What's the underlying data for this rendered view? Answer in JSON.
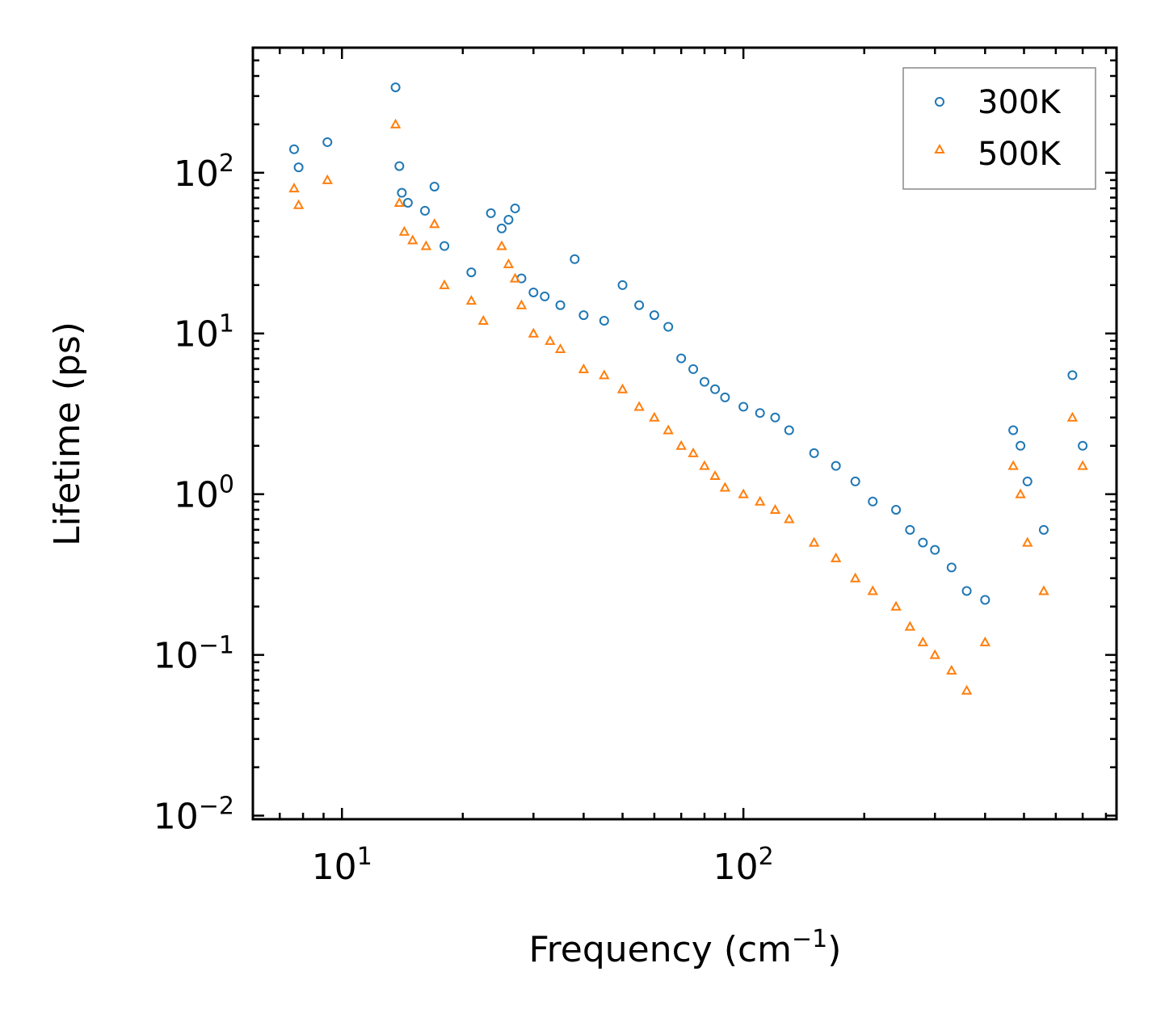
{
  "chart_data": {
    "type": "scatter",
    "title": "",
    "xlabel": "Frequency (cm",
    "xlabel_sup": "−1",
    "xlabel_end": ")",
    "ylabel": "Lifetime (ps)",
    "xscale": "log",
    "yscale": "log",
    "xlim": [
      6,
      850
    ],
    "ylim": [
      0.0095,
      600
    ],
    "x_ticks": [
      {
        "value": 10,
        "base": "10",
        "exp": "1"
      },
      {
        "value": 100,
        "base": "10",
        "exp": "2"
      }
    ],
    "y_ticks": [
      {
        "value": 0.01,
        "base": "10",
        "exp": "−2"
      },
      {
        "value": 0.1,
        "base": "10",
        "exp": "−1"
      },
      {
        "value": 1,
        "base": "10",
        "exp": "0"
      },
      {
        "value": 10,
        "base": "10",
        "exp": "1"
      },
      {
        "value": 100,
        "base": "10",
        "exp": "2"
      }
    ],
    "legend_position": "top-right",
    "series": [
      {
        "name": "300K",
        "marker": "circle",
        "color": "#1f77b4",
        "x": [
          7.6,
          7.8,
          9.2,
          13.6,
          13.9,
          14.1,
          14.6,
          16.1,
          17.0,
          18.0,
          21.0,
          23.5,
          25.0,
          26.0,
          27.0,
          28.0,
          30.0,
          32.0,
          35.0,
          38.0,
          40.0,
          45.0,
          50.0,
          55.0,
          60.0,
          65.0,
          70.0,
          75.0,
          80.0,
          85.0,
          90.0,
          100.0,
          110.0,
          120.0,
          130.0,
          150.0,
          170.0,
          190.0,
          210.0,
          240.0,
          260.0,
          280.0,
          300.0,
          330.0,
          360.0,
          400.0,
          470.0,
          490.0,
          510.0,
          560.0,
          660.0,
          700.0
        ],
        "y": [
          140,
          108,
          155,
          340,
          110,
          75,
          65,
          58,
          82,
          35,
          24,
          56,
          45,
          51,
          60,
          22,
          18,
          17,
          15,
          29,
          13,
          12,
          20,
          15,
          13,
          11,
          7,
          6,
          5,
          4.5,
          4,
          3.5,
          3.2,
          3.0,
          2.5,
          1.8,
          1.5,
          1.2,
          0.9,
          0.8,
          0.6,
          0.5,
          0.45,
          0.35,
          0.25,
          0.22,
          2.5,
          2.0,
          1.2,
          0.6,
          5.5,
          2.0
        ]
      },
      {
        "name": "500K",
        "marker": "triangle",
        "color": "#ff7f0e",
        "x": [
          7.6,
          7.8,
          9.2,
          13.6,
          13.9,
          14.3,
          15.0,
          16.2,
          17.0,
          18.0,
          21.0,
          22.5,
          25.0,
          26.0,
          27.0,
          28.0,
          30.0,
          33.0,
          35.0,
          40.0,
          45.0,
          50.0,
          55.0,
          60.0,
          65.0,
          70.0,
          75.0,
          80.0,
          85.0,
          90.0,
          100.0,
          110.0,
          120.0,
          130.0,
          150.0,
          170.0,
          190.0,
          210.0,
          240.0,
          260.0,
          280.0,
          300.0,
          330.0,
          360.0,
          400.0,
          470.0,
          490.0,
          510.0,
          560.0,
          660.0,
          700.0
        ],
        "y": [
          80,
          63,
          90,
          200,
          65,
          43,
          38,
          35,
          48,
          20,
          16,
          12,
          35,
          27,
          22,
          15,
          10,
          9,
          8,
          6,
          5.5,
          4.5,
          3.5,
          3.0,
          2.5,
          2.0,
          1.8,
          1.5,
          1.3,
          1.1,
          1.0,
          0.9,
          0.8,
          0.7,
          0.5,
          0.4,
          0.3,
          0.25,
          0.2,
          0.15,
          0.12,
          0.1,
          0.08,
          0.06,
          0.12,
          1.5,
          1.0,
          0.5,
          0.25,
          3.0,
          1.5
        ]
      }
    ]
  }
}
